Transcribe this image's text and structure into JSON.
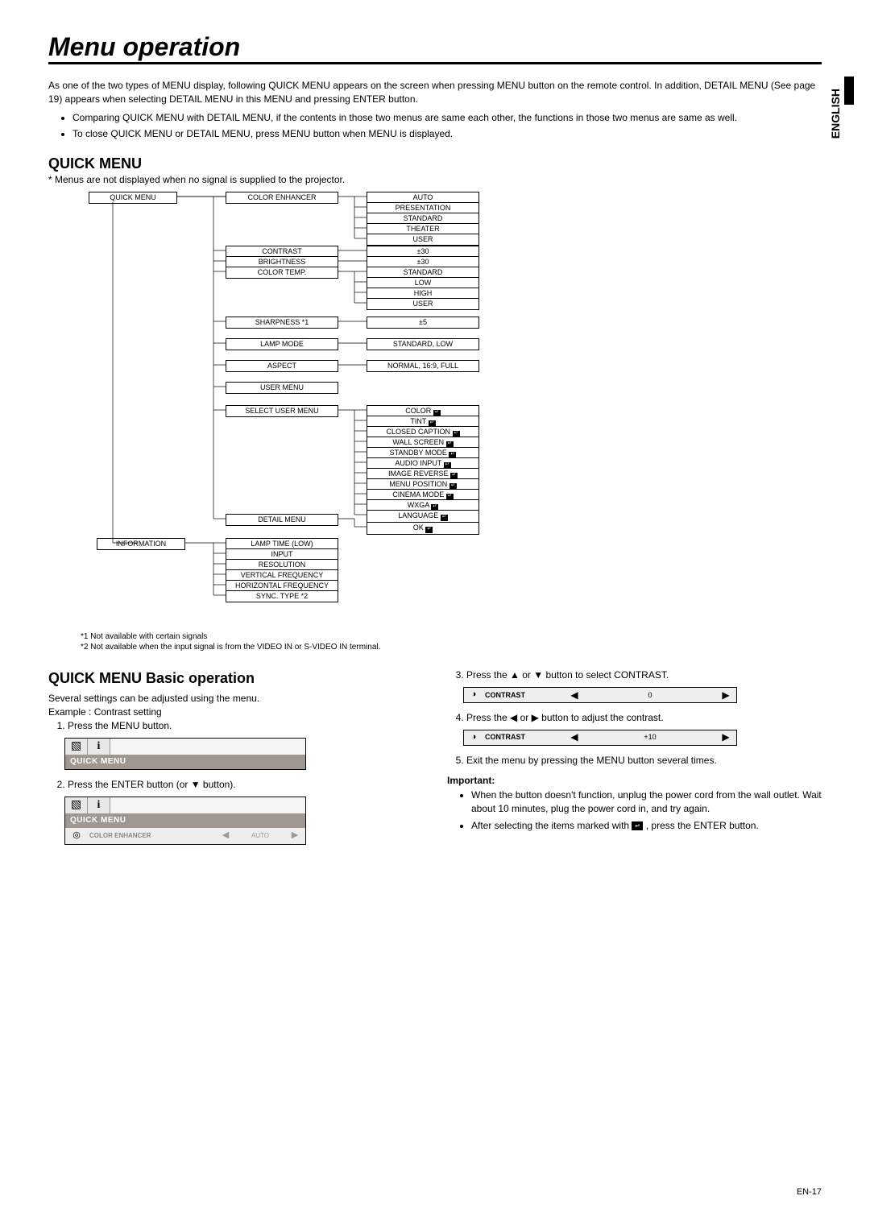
{
  "title": "Menu operation",
  "lang": "ENGLISH",
  "intro1": "As one of the two types of MENU display, following QUICK MENU appears on the screen when pressing MENU button on the remote control. In addition, DETAIL MENU (See page 19) appears when selecting DETAIL MENU in this MENU and pressing ENTER button.",
  "bul1": "Comparing QUICK MENU with DETAIL MENU, if the contents in those two menus are same each other, the functions in those two menus are same as well.",
  "bul2": "To close QUICK MENU or DETAIL MENU, press MENU button when MENU is displayed.",
  "quick_h": "QUICK MENU",
  "quick_note": "* Menus are not displayed when no signal is supplied to the projector.",
  "tree": {
    "root": "QUICK MENU",
    "col2": [
      "COLOR ENHANCER",
      "CONTRAST",
      "BRIGHTNESS",
      "COLOR TEMP.",
      "SHARPNESS *1",
      "LAMP MODE",
      "ASPECT",
      "USER MENU",
      "SELECT USER MENU",
      "DETAIL MENU"
    ],
    "info": "INFORMATION",
    "info_items": [
      "LAMP TIME (LOW)",
      "INPUT",
      "RESOLUTION",
      "VERTICAL FREQUENCY",
      "HORIZONTAL FREQUENCY",
      "SYNC. TYPE *2"
    ],
    "ce_opts": [
      "AUTO",
      "PRESENTATION",
      "STANDARD",
      "THEATER",
      "USER"
    ],
    "contrast_v": "±30",
    "bright_v": "±30",
    "ct_opts": [
      "STANDARD",
      "LOW",
      "HIGH",
      "USER"
    ],
    "sharp_v": "±5",
    "lamp_v": "STANDARD, LOW",
    "aspect_v": "NORMAL, 16:9, FULL",
    "sum_opts": [
      "COLOR",
      "TINT",
      "CLOSED CAPTION",
      "WALL SCREEN",
      "STANDBY MODE",
      "AUDIO INPUT",
      "IMAGE REVERSE",
      "MENU POSITION",
      "CINEMA MODE",
      "WXGA",
      "LANGUAGE"
    ],
    "detail_v": "OK"
  },
  "note1": "*1 Not available with certain signals",
  "note2": "*2 Not available when the input signal is from the VIDEO IN or S-VIDEO IN terminal.",
  "basic_h": "QUICK MENU Basic operation",
  "basic_intro": "Several settings can be adjusted using the menu.",
  "basic_ex": "Example : Contrast setting",
  "step1": "Press the MENU button.",
  "step2": "Press the ENTER button (or ▼ button).",
  "step3": "Press the ▲ or ▼ button to select CONTRAST.",
  "step4": "Press the ◀ or ▶ button to adjust the contrast.",
  "step5": "Exit the menu by pressing the MENU button several times.",
  "important_h": "Important:",
  "imp1": "When the button doesn't function, unplug the power cord from the wall outlet. Wait about 10 minutes, plug the power cord in, and try again.",
  "imp2a": "After selecting the items marked with ",
  "imp2b": " , press the ENTER button.",
  "menu_label": "QUICK MENU",
  "ce_label": "COLOR ENHANCER",
  "ce_val": "AUTO",
  "contrast_label": "CONTRAST",
  "c_v0": "0",
  "c_v10": "+10",
  "pagenum": "EN-17"
}
